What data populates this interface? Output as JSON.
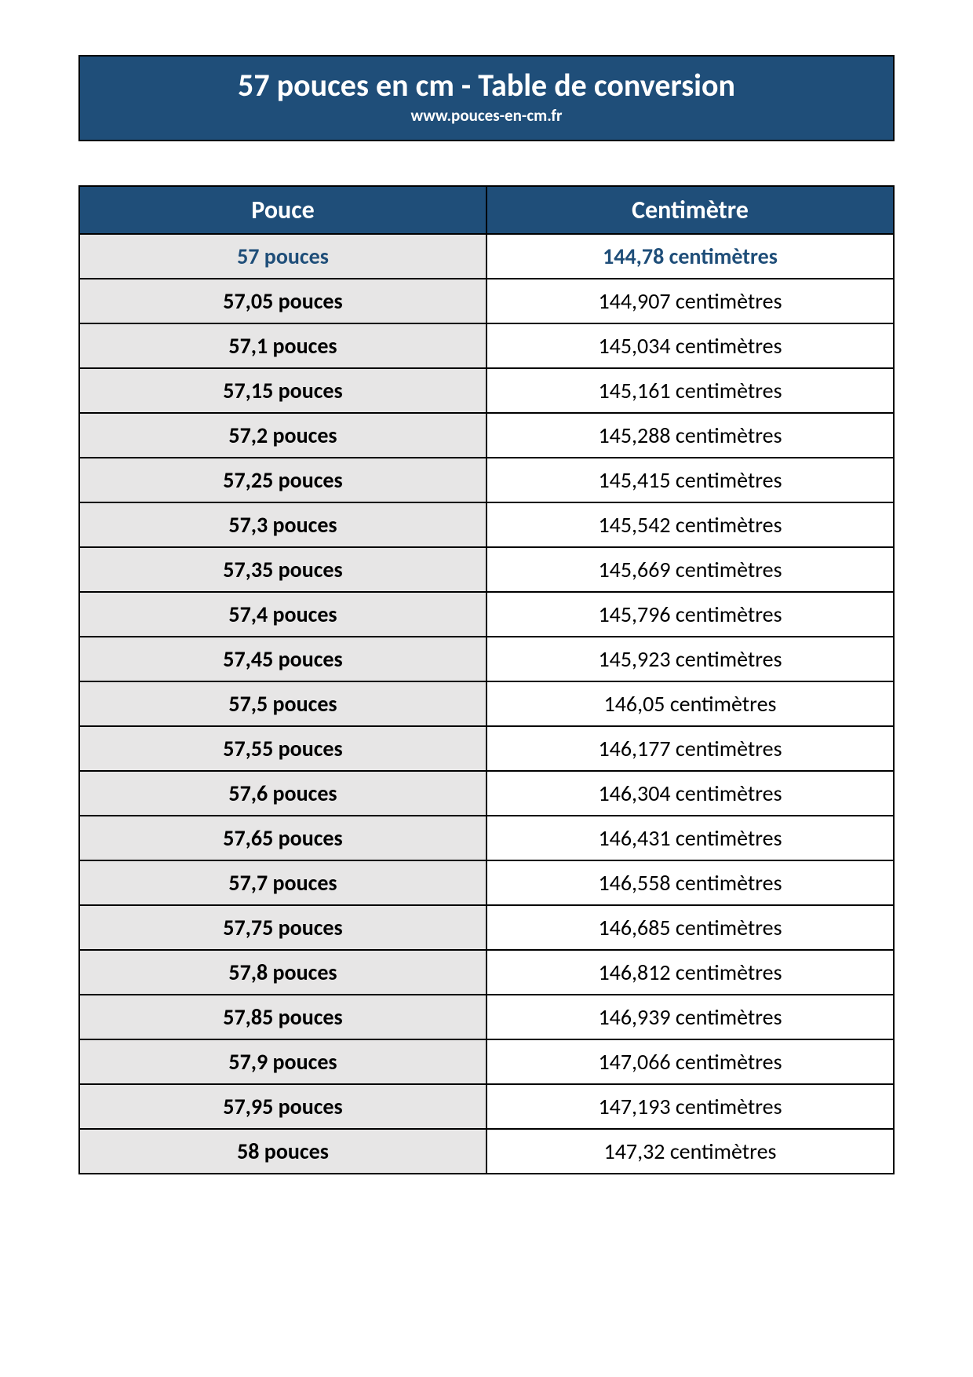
{
  "header": {
    "title": "57 pouces en cm - Table de conversion",
    "subtitle": "www.pouces-en-cm.fr",
    "background_color": "#1f4e79",
    "text_color": "#ffffff",
    "title_fontsize": 40,
    "subtitle_fontsize": 21
  },
  "table": {
    "type": "table",
    "columns": [
      {
        "label": "Pouce",
        "width_pct": 50,
        "align": "center",
        "bg": "#e7e6e6",
        "font_weight": "bold"
      },
      {
        "label": "Centimètre",
        "width_pct": 50,
        "align": "center",
        "bg": "#ffffff",
        "font_weight": "normal"
      }
    ],
    "header_bg": "#1f4e79",
    "header_text_color": "#ffffff",
    "header_fontsize": 32,
    "cell_fontsize": 28,
    "border_color": "#000000",
    "border_width": 2,
    "highlight_text_color": "#1f4e79",
    "rows": [
      {
        "pouce": "57 pouces",
        "cm": "144,78 centimètres",
        "highlight": true
      },
      {
        "pouce": "57,05 pouces",
        "cm": "144,907 centimètres",
        "highlight": false
      },
      {
        "pouce": "57,1 pouces",
        "cm": "145,034 centimètres",
        "highlight": false
      },
      {
        "pouce": "57,15 pouces",
        "cm": "145,161 centimètres",
        "highlight": false
      },
      {
        "pouce": "57,2 pouces",
        "cm": "145,288 centimètres",
        "highlight": false
      },
      {
        "pouce": "57,25 pouces",
        "cm": "145,415 centimètres",
        "highlight": false
      },
      {
        "pouce": "57,3 pouces",
        "cm": "145,542 centimètres",
        "highlight": false
      },
      {
        "pouce": "57,35 pouces",
        "cm": "145,669 centimètres",
        "highlight": false
      },
      {
        "pouce": "57,4 pouces",
        "cm": "145,796 centimètres",
        "highlight": false
      },
      {
        "pouce": "57,45 pouces",
        "cm": "145,923 centimètres",
        "highlight": false
      },
      {
        "pouce": "57,5 pouces",
        "cm": "146,05 centimètres",
        "highlight": false
      },
      {
        "pouce": "57,55 pouces",
        "cm": "146,177 centimètres",
        "highlight": false
      },
      {
        "pouce": "57,6 pouces",
        "cm": "146,304 centimètres",
        "highlight": false
      },
      {
        "pouce": "57,65 pouces",
        "cm": "146,431 centimètres",
        "highlight": false
      },
      {
        "pouce": "57,7 pouces",
        "cm": "146,558 centimètres",
        "highlight": false
      },
      {
        "pouce": "57,75 pouces",
        "cm": "146,685 centimètres",
        "highlight": false
      },
      {
        "pouce": "57,8 pouces",
        "cm": "146,812 centimètres",
        "highlight": false
      },
      {
        "pouce": "57,85 pouces",
        "cm": "146,939 centimètres",
        "highlight": false
      },
      {
        "pouce": "57,9 pouces",
        "cm": "147,066 centimètres",
        "highlight": false
      },
      {
        "pouce": "57,95 pouces",
        "cm": "147,193 centimètres",
        "highlight": false
      },
      {
        "pouce": "58 pouces",
        "cm": "147,32 centimètres",
        "highlight": false
      }
    ]
  }
}
